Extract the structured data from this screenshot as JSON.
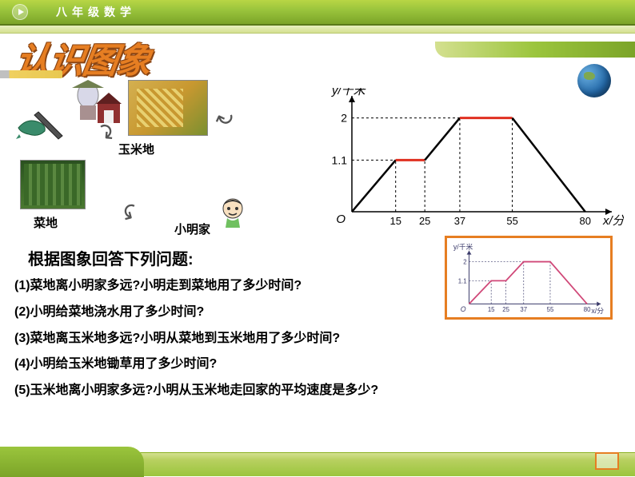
{
  "header": {
    "grade": "八年级",
    "subject": "数学"
  },
  "title": "认识图象",
  "diagram": {
    "corn_label": "玉米地",
    "veg_label": "菜地",
    "home_label": "小明家"
  },
  "chart": {
    "type": "line",
    "y_label": "y/千米",
    "x_label": "x/分",
    "origin": "O",
    "y_ticks": [
      1.1,
      2
    ],
    "x_ticks": [
      15,
      25,
      37,
      55,
      80
    ],
    "x_span": 85,
    "y_span": 2.3,
    "segments": [
      {
        "from": [
          0,
          0
        ],
        "to": [
          15,
          1.1
        ],
        "color": "#000000",
        "width": 2.5
      },
      {
        "from": [
          15,
          1.1
        ],
        "to": [
          25,
          1.1
        ],
        "color": "#e03020",
        "width": 3
      },
      {
        "from": [
          25,
          1.1
        ],
        "to": [
          37,
          2
        ],
        "color": "#000000",
        "width": 2.5
      },
      {
        "from": [
          37,
          2
        ],
        "to": [
          55,
          2
        ],
        "color": "#e03020",
        "width": 3
      },
      {
        "from": [
          55,
          2
        ],
        "to": [
          80,
          0
        ],
        "color": "#000000",
        "width": 2.5
      }
    ],
    "axis_color": "#000000",
    "dash_color": "#000000",
    "label_fontsize": 15
  },
  "prompt": "根据图象回答下列问题:",
  "questions": {
    "q1": "(1)菜地离小明家多远?小明走到菜地用了多少时间?",
    "q2": "(2)小明给菜地浇水用了多少时间?",
    "q3": "(3)菜地离玉米地多远?小明从菜地到玉米地用了多少时间?",
    "q4": "(4)小明给玉米地锄草用了多少时间?",
    "q5": "(5)玉米地离小明家多远?小明从玉米地走回家的平均速度是多少?"
  },
  "mini_chart": {
    "y_label": "y/千米",
    "x_label": "x/分",
    "y_ticks": [
      1.1,
      2
    ],
    "x_ticks": [
      15,
      25,
      37,
      55,
      80
    ],
    "line_color": "#d04878",
    "axis_color": "#3a3a6a"
  }
}
